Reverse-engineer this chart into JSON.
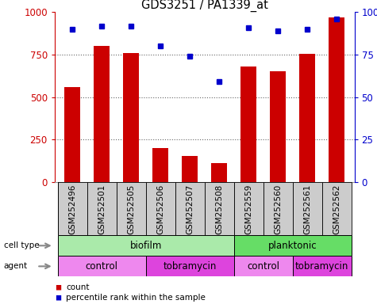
{
  "title": "GDS3251 / PA1339_at",
  "samples": [
    "GSM252496",
    "GSM252501",
    "GSM252505",
    "GSM252506",
    "GSM252507",
    "GSM252508",
    "GSM252559",
    "GSM252560",
    "GSM252561",
    "GSM252562"
  ],
  "counts": [
    560,
    800,
    760,
    200,
    155,
    110,
    680,
    650,
    755,
    970
  ],
  "percentiles": [
    90,
    92,
    92,
    80,
    74,
    59,
    91,
    89,
    90,
    96
  ],
  "ylim_left": [
    0,
    1000
  ],
  "ylim_right": [
    0,
    100
  ],
  "yticks_left": [
    0,
    250,
    500,
    750,
    1000
  ],
  "yticks_right": [
    0,
    25,
    50,
    75,
    100
  ],
  "bar_color": "#cc0000",
  "dot_color": "#0000cc",
  "cell_type_groups": [
    {
      "label": "biofilm",
      "start": 0,
      "end": 6,
      "color": "#aaeaaa"
    },
    {
      "label": "planktonic",
      "start": 6,
      "end": 10,
      "color": "#66dd66"
    }
  ],
  "agent_groups": [
    {
      "label": "control",
      "start": 0,
      "end": 3,
      "color": "#ee88ee"
    },
    {
      "label": "tobramycin",
      "start": 3,
      "end": 6,
      "color": "#dd44dd"
    },
    {
      "label": "control",
      "start": 6,
      "end": 8,
      "color": "#ee88ee"
    },
    {
      "label": "tobramycin",
      "start": 8,
      "end": 10,
      "color": "#dd44dd"
    }
  ],
  "legend_count_color": "#cc0000",
  "legend_pct_color": "#0000cc",
  "left_axis_color": "#cc0000",
  "right_axis_color": "#0000cc",
  "grid_color": "#666666",
  "bar_width": 0.55,
  "xtick_bg": "#cccccc",
  "label_color": "#333333"
}
